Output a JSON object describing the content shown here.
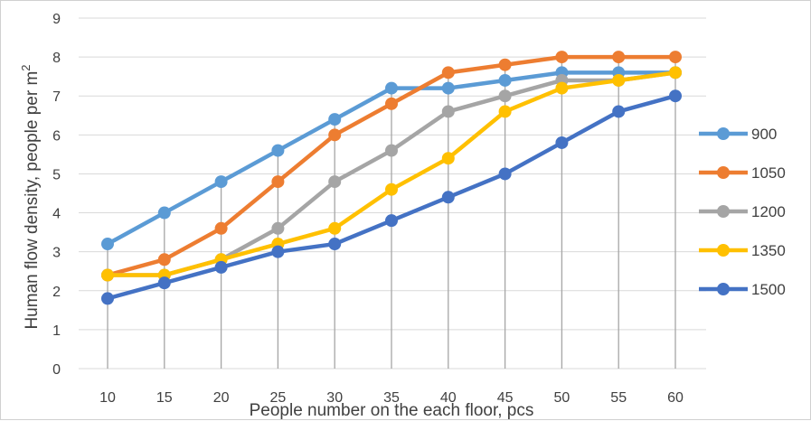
{
  "chart_data": {
    "type": "line",
    "title": "",
    "xlabel": "People number on the each floor, pcs",
    "ylabel": "Human flow density, people per m2",
    "ylabel_main": "Human flow density, people per m",
    "ylabel_sup": "2",
    "x": [
      10,
      15,
      20,
      25,
      30,
      35,
      40,
      45,
      50,
      55,
      60
    ],
    "ylim": [
      0,
      9
    ],
    "yticks": [
      0,
      1,
      2,
      3,
      4,
      5,
      6,
      7,
      8,
      9
    ],
    "grid": "horizontal",
    "drop_lines": true,
    "legend_position": "right",
    "series": [
      {
        "name": "900",
        "color": "#5B9BD5",
        "values": [
          3.2,
          4.0,
          4.8,
          5.6,
          6.4,
          7.2,
          7.2,
          7.4,
          7.6,
          7.6,
          7.6
        ]
      },
      {
        "name": "1050",
        "color": "#ED7D31",
        "values": [
          2.4,
          2.8,
          3.6,
          4.8,
          6.0,
          6.8,
          7.6,
          7.8,
          8.0,
          8.0,
          8.0
        ]
      },
      {
        "name": "1200",
        "color": "#A5A5A5",
        "values": [
          2.4,
          2.4,
          2.8,
          3.6,
          4.8,
          5.6,
          6.6,
          7.0,
          7.4,
          7.4,
          7.6
        ]
      },
      {
        "name": "1350",
        "color": "#FFC000",
        "values": [
          2.4,
          2.4,
          2.8,
          3.2,
          3.6,
          4.6,
          5.4,
          6.6,
          7.2,
          7.4,
          7.6
        ]
      },
      {
        "name": "1500",
        "color": "#4472C4",
        "values": [
          1.8,
          2.2,
          2.6,
          3.0,
          3.2,
          3.8,
          4.4,
          5.0,
          5.8,
          6.6,
          7.0
        ]
      }
    ]
  }
}
